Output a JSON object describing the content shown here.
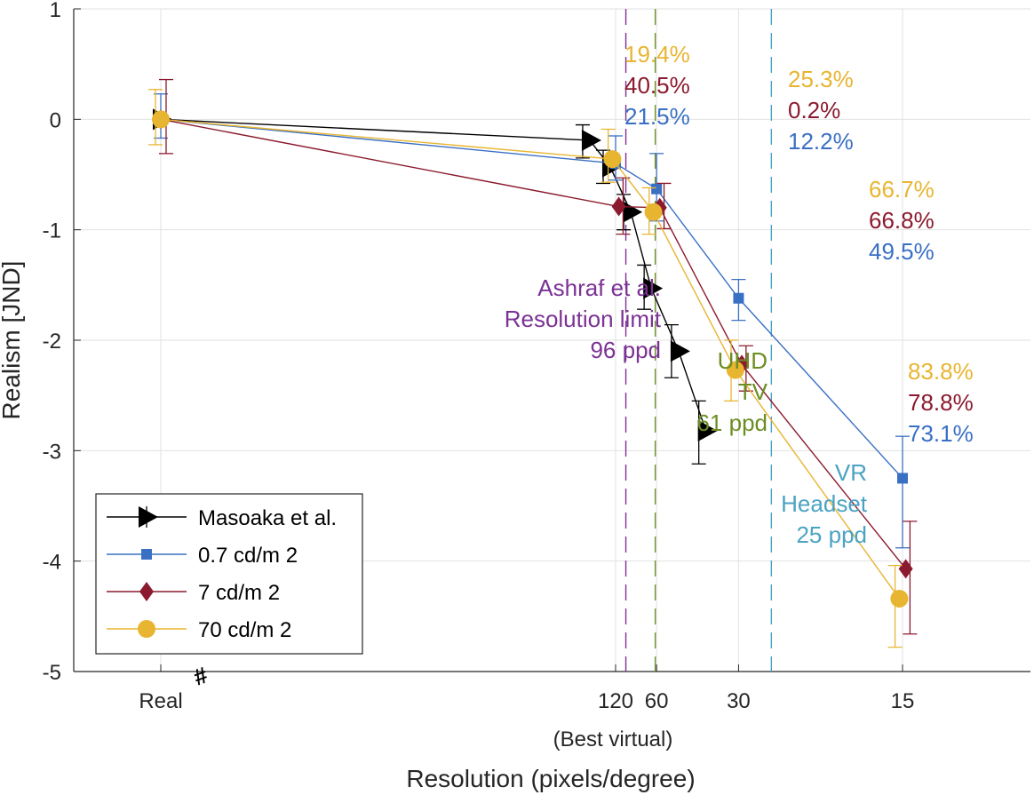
{
  "chart_data": {
    "type": "line",
    "title": "",
    "xlabel": "Resolution (pixels/degree)",
    "xlabel_sub": "(Best virtual)",
    "ylabel": "Realism [JND]",
    "ylim": [
      -5,
      1
    ],
    "yticks": [
      "1",
      "0",
      "-1",
      "-2",
      "-3",
      "-4",
      "-5"
    ],
    "xticks": [
      {
        "label": "Real",
        "x": "Real"
      },
      {
        "label": "120",
        "x": 120
      },
      {
        "label": "60",
        "x": 60
      },
      {
        "label": "30",
        "x": 30
      },
      {
        "label": "15",
        "x": 15
      }
    ],
    "axis_break_mark": "#",
    "grid": true,
    "legend_position": "bottom-left",
    "series": [
      {
        "name": "Masoaka et al.",
        "color": "#000000",
        "marker": "triangle-right",
        "points": [
          {
            "x": "Real",
            "y": 0.0,
            "lo": 0.0,
            "hi": 0.0
          },
          {
            "x": 240,
            "y": -0.19,
            "lo": -0.35,
            "hi": -0.05
          },
          {
            "x": 120,
            "y": -0.43,
            "lo": -0.58,
            "hi": -0.28
          },
          {
            "x": 80,
            "y": -0.84,
            "lo": -1.0,
            "hi": -0.68
          },
          {
            "x": 60,
            "y": -1.53,
            "lo": -1.72,
            "hi": -1.32
          },
          {
            "x": 45,
            "y": -2.1,
            "lo": -2.34,
            "hi": -1.86
          },
          {
            "x": 36,
            "y": -2.82,
            "lo": -3.12,
            "hi": -2.55
          }
        ]
      },
      {
        "name": "0.7 cd/m 2",
        "color": "#3a70c4",
        "marker": "square",
        "points": [
          {
            "x": "Real",
            "y": 0.0,
            "lo": -0.17,
            "hi": 0.23
          },
          {
            "x": 120,
            "y": -0.4,
            "lo": -0.55,
            "hi": -0.15
          },
          {
            "x": 60,
            "y": -0.63,
            "lo": -0.92,
            "hi": -0.31
          },
          {
            "x": 30,
            "y": -1.62,
            "lo": -1.82,
            "hi": -1.45
          },
          {
            "x": 15,
            "y": -3.25,
            "lo": -3.88,
            "hi": -2.87
          }
        ]
      },
      {
        "name": "7 cd/m 2",
        "color": "#8b1a2e",
        "marker": "diamond",
        "points": [
          {
            "x": "Real",
            "y": 0.0,
            "lo": -0.31,
            "hi": 0.36
          },
          {
            "x": 120,
            "y": -0.79,
            "lo": -1.04,
            "hi": -0.53
          },
          {
            "x": 60,
            "y": -0.8,
            "lo": -0.99,
            "hi": -0.58
          },
          {
            "x": 30,
            "y": -2.22,
            "lo": -2.46,
            "hi": -2.05
          },
          {
            "x": 15,
            "y": -4.07,
            "lo": -4.66,
            "hi": -3.64
          }
        ]
      },
      {
        "name": "70 cd/m 2",
        "color": "#e8b531",
        "marker": "circle",
        "points": [
          {
            "x": "Real",
            "y": 0.0,
            "lo": -0.23,
            "hi": 0.27
          },
          {
            "x": 120,
            "y": -0.36,
            "lo": -0.57,
            "hi": -0.09
          },
          {
            "x": 60,
            "y": -0.84,
            "lo": -1.04,
            "hi": -0.62
          },
          {
            "x": 30,
            "y": -2.27,
            "lo": -2.55,
            "hi": -2.0
          },
          {
            "x": 15,
            "y": -4.34,
            "lo": -4.78,
            "hi": -4.04
          }
        ]
      }
    ],
    "reference_lines": [
      {
        "x": 96,
        "color": "#7b3294",
        "label": [
          "Ashraf et al.",
          "Resolution limit",
          "96 ppd"
        ]
      },
      {
        "x": 61,
        "color": "#6b8e23",
        "label": [
          "UHD",
          "TV",
          "61 ppd"
        ]
      },
      {
        "x": 25,
        "color": "#4ba3c3",
        "label": [
          "VR",
          "Headset",
          "25 ppd"
        ]
      }
    ],
    "percent_annotations": [
      {
        "group": "120-60",
        "lines": [
          {
            "text": "19.4%",
            "color": "#e8b531"
          },
          {
            "text": "40.5%",
            "color": "#8b1a2e"
          },
          {
            "text": "21.5%",
            "color": "#3a70c4"
          }
        ]
      },
      {
        "group": "60-30",
        "lines": [
          {
            "text": "25.3%",
            "color": "#e8b531"
          },
          {
            "text": "0.2%",
            "color": "#8b1a2e"
          },
          {
            "text": "12.2%",
            "color": "#3a70c4"
          }
        ]
      },
      {
        "group": "30",
        "lines": [
          {
            "text": "66.7%",
            "color": "#e8b531"
          },
          {
            "text": "66.8%",
            "color": "#8b1a2e"
          },
          {
            "text": "49.5%",
            "color": "#3a70c4"
          }
        ]
      },
      {
        "group": "15",
        "lines": [
          {
            "text": "83.8%",
            "color": "#e8b531"
          },
          {
            "text": "78.8%",
            "color": "#8b1a2e"
          },
          {
            "text": "73.1%",
            "color": "#3a70c4"
          }
        ]
      }
    ]
  }
}
